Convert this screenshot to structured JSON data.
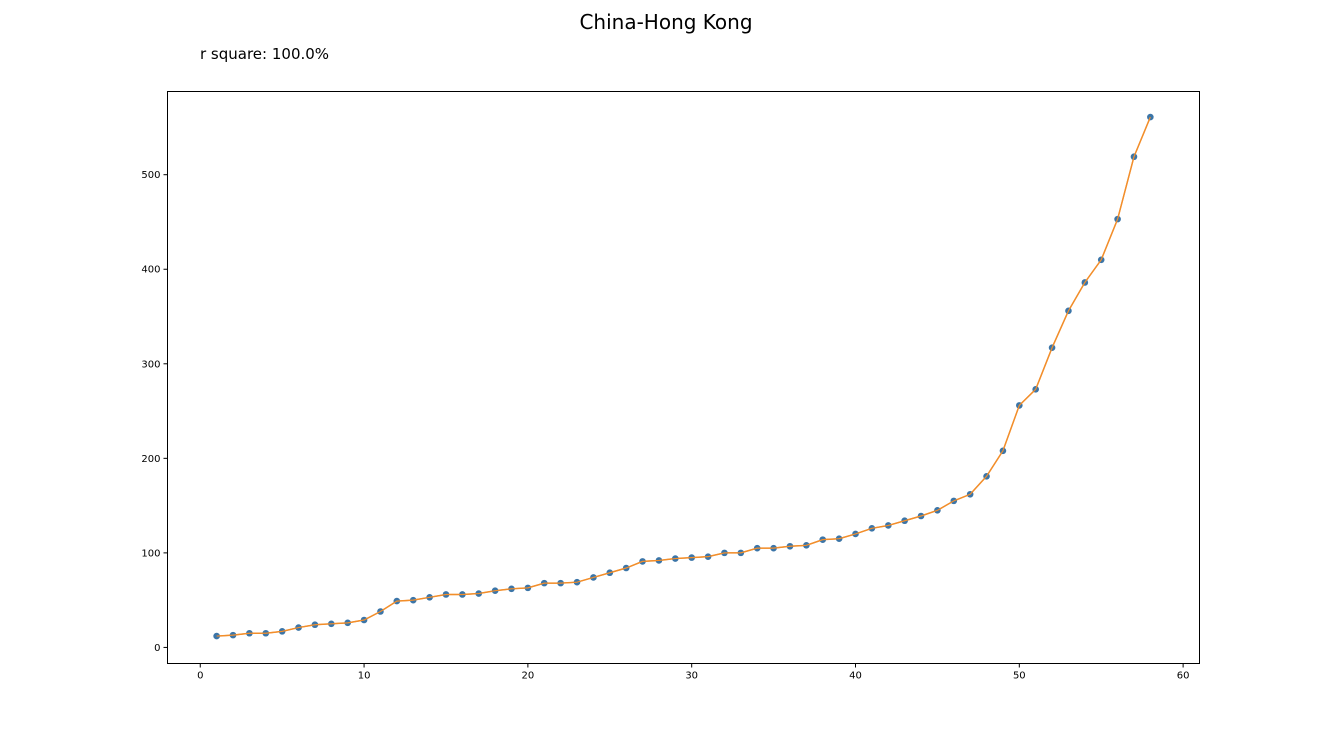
{
  "chart_data": {
    "type": "line",
    "title": "China-Hong Kong",
    "annotation": "r square: 100.0%",
    "xlim": [
      -2,
      61
    ],
    "ylim": [
      -17,
      588
    ],
    "xticks": [
      0,
      10,
      20,
      30,
      40,
      50,
      60
    ],
    "yticks": [
      0,
      100,
      200,
      300,
      400,
      500
    ],
    "grid": false,
    "series": [
      {
        "marker_color": "#3b75a8",
        "line_color": "#f28e2b",
        "x": [
          1,
          2,
          3,
          4,
          5,
          6,
          7,
          8,
          9,
          10,
          11,
          12,
          13,
          14,
          15,
          16,
          17,
          18,
          19,
          20,
          21,
          22,
          23,
          24,
          25,
          26,
          27,
          28,
          29,
          30,
          31,
          32,
          33,
          34,
          35,
          36,
          37,
          38,
          39,
          40,
          41,
          42,
          43,
          44,
          45,
          46,
          47,
          48,
          49,
          50,
          51,
          52,
          53,
          54,
          55,
          56,
          57,
          58
        ],
        "y": [
          12,
          13,
          15,
          15,
          17,
          21,
          24,
          25,
          26,
          29,
          38,
          49,
          50,
          53,
          56,
          56,
          57,
          60,
          62,
          63,
          68,
          68,
          69,
          74,
          79,
          84,
          91,
          92,
          94,
          95,
          96,
          100,
          100,
          105,
          105,
          107,
          108,
          114,
          115,
          120,
          126,
          129,
          134,
          139,
          145,
          155,
          162,
          181,
          208,
          256,
          273,
          317,
          356,
          386,
          410,
          453,
          519,
          561
        ]
      }
    ]
  }
}
